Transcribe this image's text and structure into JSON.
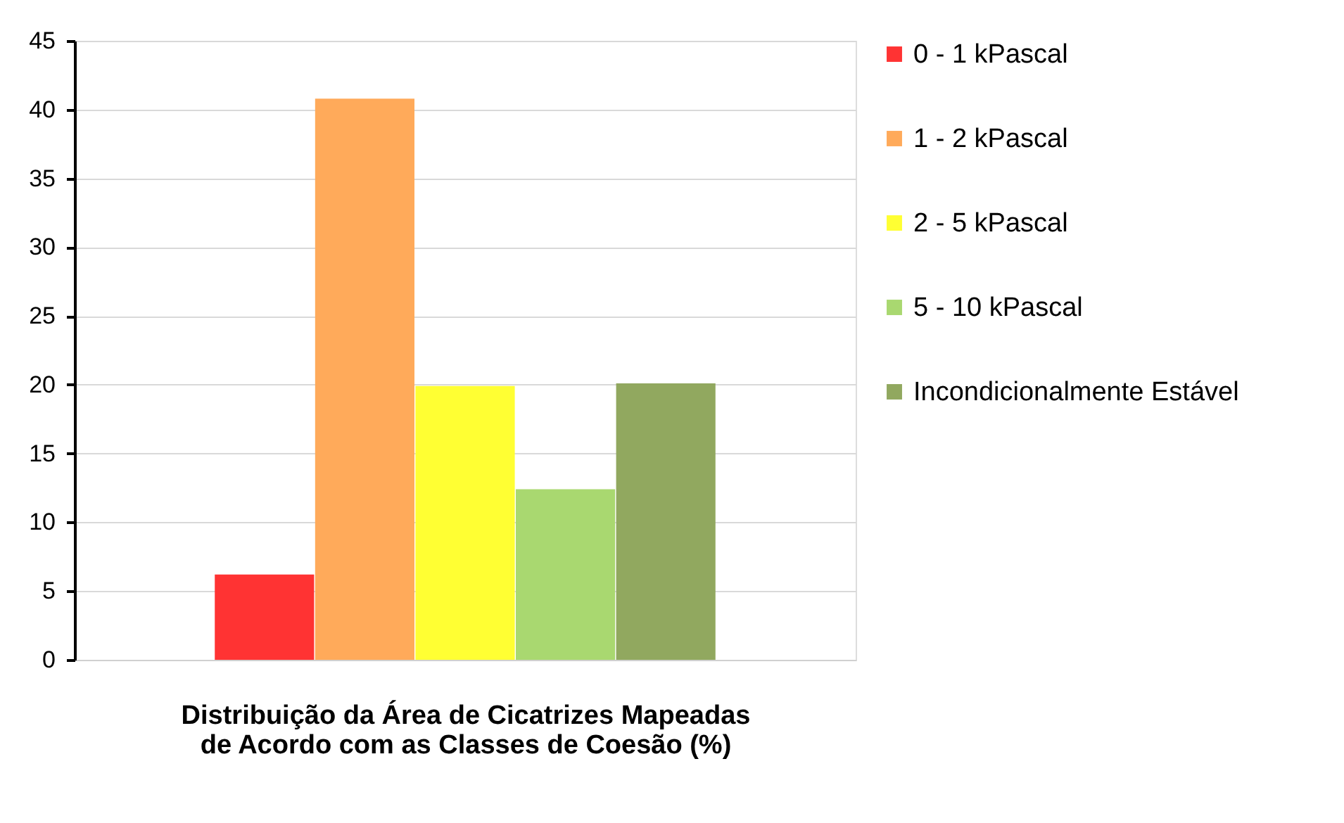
{
  "chart_data": {
    "type": "bar",
    "xlabel": "Distribuição da Área de Cicatrizes Mapeadas de Acordo com as Classes de Coesão (%)",
    "categories": [
      null
    ],
    "series": [
      {
        "name": "0 - 1 kPascal",
        "color": "#ff3333",
        "values": [
          6.2
        ]
      },
      {
        "name": "1 - 2 kPascal",
        "color": "#ffaa5a",
        "values": [
          40.8
        ]
      },
      {
        "name": "2 - 5 kPascal",
        "color": "#ffff33",
        "values": [
          19.9
        ]
      },
      {
        "name": "5 - 10 kPascal",
        "color": "#a9d870",
        "values": [
          12.4
        ]
      },
      {
        "name": "Incondicionalmente Estável",
        "color": "#91a85f",
        "values": [
          20.1
        ]
      }
    ],
    "ylim": [
      0,
      45
    ],
    "yticks": [
      0,
      5,
      10,
      15,
      20,
      25,
      30,
      35,
      40,
      45
    ],
    "grid": "y",
    "legend": "right",
    "tick_labels": "y"
  }
}
